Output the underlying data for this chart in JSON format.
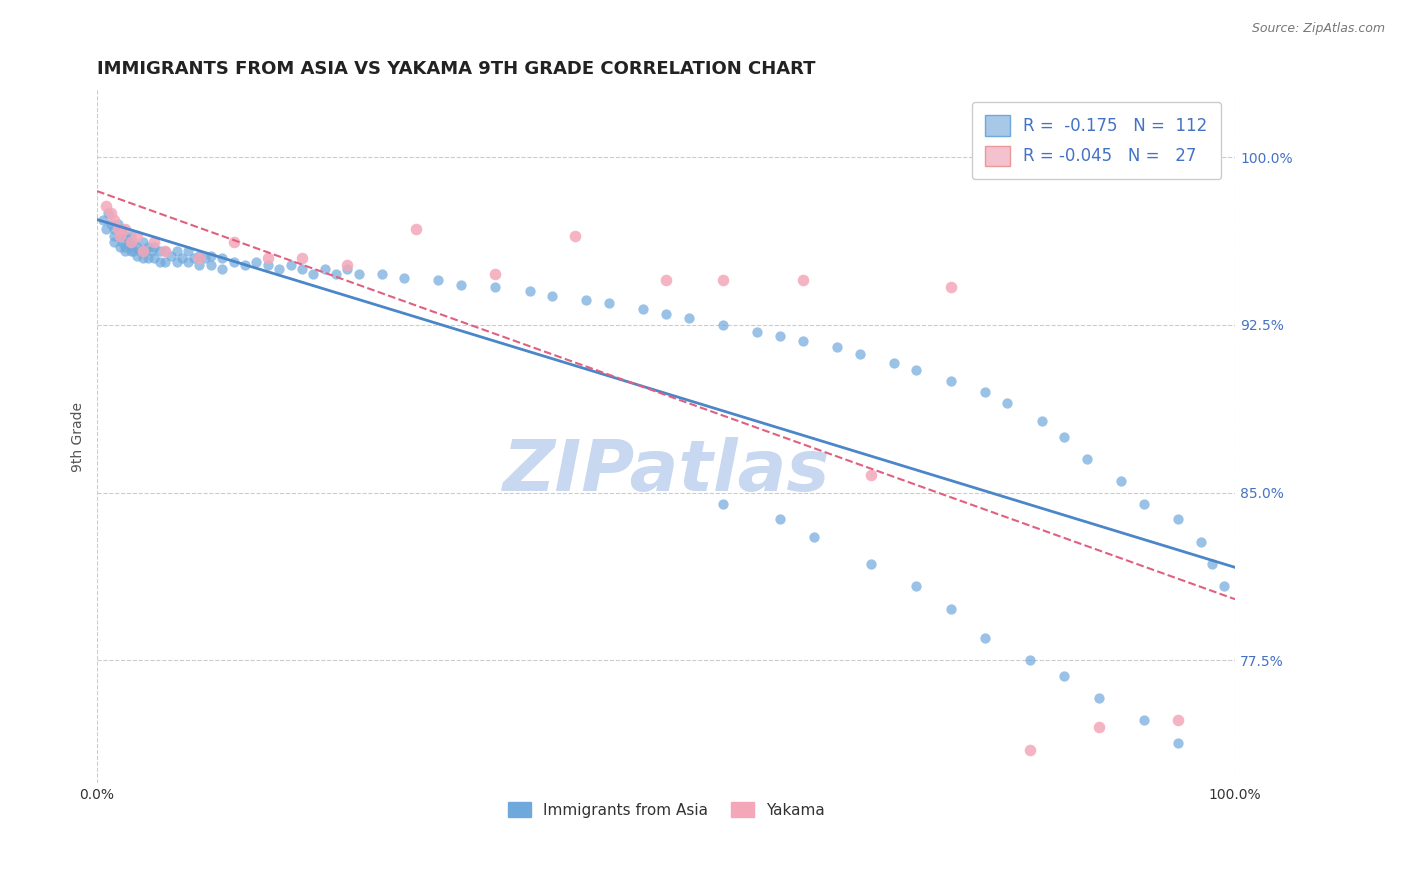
{
  "title": "IMMIGRANTS FROM ASIA VS YAKAMA 9TH GRADE CORRELATION CHART",
  "source_text": "Source: ZipAtlas.com",
  "ylabel": "9th Grade",
  "x_label_bottom_left": "0.0%",
  "x_label_bottom_right": "100.0%",
  "y_tick_values": [
    0.775,
    0.85,
    0.925,
    1.0
  ],
  "xlim": [
    0.0,
    1.0
  ],
  "ylim": [
    0.72,
    1.03
  ],
  "blue_R": -0.175,
  "blue_N": 112,
  "pink_R": -0.045,
  "pink_N": 27,
  "blue_dot_color": "#6fa8dc",
  "pink_dot_color": "#f4a7b9",
  "blue_line_color": "#4a86c8",
  "pink_line_color": "#e06080",
  "grid_color": "#cccccc",
  "watermark_color": "#c8d8f0",
  "title_fontsize": 13,
  "axis_label_fontsize": 10,
  "tick_fontsize": 10,
  "watermark_text": "ZIPatlas",
  "background_color": "#ffffff",
  "blue_scatter_x": [
    0.005,
    0.008,
    0.01,
    0.012,
    0.015,
    0.015,
    0.015,
    0.018,
    0.02,
    0.02,
    0.02,
    0.022,
    0.022,
    0.025,
    0.025,
    0.025,
    0.028,
    0.03,
    0.03,
    0.03,
    0.032,
    0.032,
    0.035,
    0.035,
    0.038,
    0.04,
    0.04,
    0.04,
    0.042,
    0.045,
    0.045,
    0.048,
    0.05,
    0.05,
    0.055,
    0.055,
    0.06,
    0.06,
    0.065,
    0.07,
    0.07,
    0.075,
    0.08,
    0.08,
    0.085,
    0.09,
    0.09,
    0.095,
    0.1,
    0.1,
    0.11,
    0.11,
    0.12,
    0.13,
    0.14,
    0.15,
    0.16,
    0.17,
    0.18,
    0.19,
    0.2,
    0.21,
    0.22,
    0.23,
    0.25,
    0.27,
    0.3,
    0.32,
    0.35,
    0.38,
    0.4,
    0.43,
    0.45,
    0.48,
    0.5,
    0.52,
    0.55,
    0.58,
    0.6,
    0.62,
    0.65,
    0.67,
    0.7,
    0.72,
    0.75,
    0.78,
    0.8,
    0.83,
    0.85,
    0.87,
    0.9,
    0.92,
    0.95,
    0.97,
    0.98,
    0.99,
    0.55,
    0.6,
    0.63,
    0.68,
    0.72,
    0.75,
    0.78,
    0.82,
    0.85,
    0.88,
    0.92,
    0.95
  ],
  "blue_scatter_y": [
    0.972,
    0.968,
    0.975,
    0.97,
    0.965,
    0.968,
    0.962,
    0.97,
    0.968,
    0.965,
    0.96,
    0.968,
    0.962,
    0.965,
    0.96,
    0.958,
    0.962,
    0.965,
    0.96,
    0.958,
    0.962,
    0.958,
    0.96,
    0.956,
    0.958,
    0.962,
    0.958,
    0.955,
    0.958,
    0.96,
    0.955,
    0.958,
    0.96,
    0.955,
    0.958,
    0.953,
    0.958,
    0.953,
    0.956,
    0.958,
    0.953,
    0.955,
    0.958,
    0.953,
    0.955,
    0.956,
    0.952,
    0.955,
    0.956,
    0.952,
    0.955,
    0.95,
    0.953,
    0.952,
    0.953,
    0.952,
    0.95,
    0.952,
    0.95,
    0.948,
    0.95,
    0.948,
    0.95,
    0.948,
    0.948,
    0.946,
    0.945,
    0.943,
    0.942,
    0.94,
    0.938,
    0.936,
    0.935,
    0.932,
    0.93,
    0.928,
    0.925,
    0.922,
    0.92,
    0.918,
    0.915,
    0.912,
    0.908,
    0.905,
    0.9,
    0.895,
    0.89,
    0.882,
    0.875,
    0.865,
    0.855,
    0.845,
    0.838,
    0.828,
    0.818,
    0.808,
    0.845,
    0.838,
    0.83,
    0.818,
    0.808,
    0.798,
    0.785,
    0.775,
    0.768,
    0.758,
    0.748,
    0.738
  ],
  "pink_scatter_x": [
    0.008,
    0.012,
    0.015,
    0.018,
    0.02,
    0.025,
    0.03,
    0.035,
    0.04,
    0.05,
    0.06,
    0.09,
    0.12,
    0.15,
    0.18,
    0.22,
    0.28,
    0.35,
    0.42,
    0.5,
    0.55,
    0.62,
    0.68,
    0.75,
    0.82,
    0.88,
    0.95
  ],
  "pink_scatter_y": [
    0.978,
    0.975,
    0.972,
    0.968,
    0.965,
    0.968,
    0.962,
    0.965,
    0.958,
    0.962,
    0.958,
    0.955,
    0.962,
    0.955,
    0.955,
    0.952,
    0.968,
    0.948,
    0.965,
    0.945,
    0.945,
    0.945,
    0.858,
    0.942,
    0.735,
    0.745,
    0.748
  ]
}
